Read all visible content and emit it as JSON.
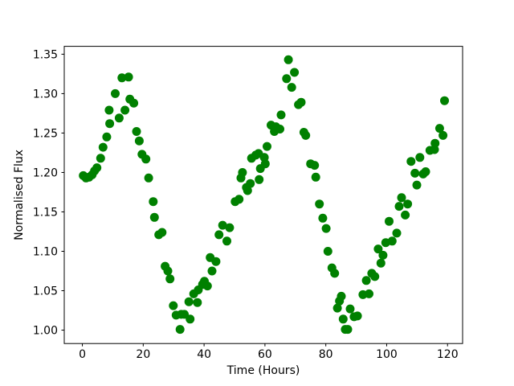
{
  "figure": {
    "background_color": "#ffffff"
  },
  "chart_data": {
    "type": "scatter",
    "title": "",
    "xlabel": "Time (Hours)",
    "ylabel": "Normalised Flux",
    "xlim": [
      -5.95,
      124.95
    ],
    "ylim": [
      0.983,
      1.36
    ],
    "xtick_values": [
      0,
      20,
      40,
      60,
      80,
      100,
      120
    ],
    "xtick_labels": [
      "0",
      "20",
      "40",
      "60",
      "80",
      "100",
      "120"
    ],
    "ytick_values": [
      1.0,
      1.05,
      1.1,
      1.15,
      1.2,
      1.25,
      1.3,
      1.35
    ],
    "ytick_labels": [
      "1.00",
      "1.05",
      "1.10",
      "1.15",
      "1.20",
      "1.25",
      "1.30",
      "1.35"
    ],
    "grid": false,
    "legend": "none",
    "marker": {
      "shape": "circle",
      "color": "#008000",
      "radius_px": 5.5
    },
    "points": [
      [
        0.3,
        1.196
      ],
      [
        1.2,
        1.193
      ],
      [
        2.2,
        1.194
      ],
      [
        3.2,
        1.197
      ],
      [
        4.0,
        1.202
      ],
      [
        4.8,
        1.206
      ],
      [
        6.0,
        1.218
      ],
      [
        6.8,
        1.232
      ],
      [
        8.0,
        1.245
      ],
      [
        8.8,
        1.279
      ],
      [
        9.0,
        1.262
      ],
      [
        10.8,
        1.3
      ],
      [
        12.1,
        1.269
      ],
      [
        13.0,
        1.32
      ],
      [
        14.0,
        1.279
      ],
      [
        15.2,
        1.321
      ],
      [
        15.6,
        1.293
      ],
      [
        16.9,
        1.288
      ],
      [
        17.8,
        1.252
      ],
      [
        18.7,
        1.24
      ],
      [
        19.6,
        1.223
      ],
      [
        20.9,
        1.217
      ],
      [
        21.8,
        1.193
      ],
      [
        23.3,
        1.163
      ],
      [
        23.7,
        1.143
      ],
      [
        25.1,
        1.121
      ],
      [
        26.2,
        1.124
      ],
      [
        27.2,
        1.081
      ],
      [
        28.1,
        1.075
      ],
      [
        28.8,
        1.065
      ],
      [
        29.9,
        1.031
      ],
      [
        30.8,
        1.019
      ],
      [
        32.1,
        1.001
      ],
      [
        32.5,
        1.02
      ],
      [
        33.5,
        1.02
      ],
      [
        35.0,
        1.036
      ],
      [
        35.4,
        1.014
      ],
      [
        36.6,
        1.046
      ],
      [
        37.8,
        1.035
      ],
      [
        38.1,
        1.051
      ],
      [
        39.5,
        1.058
      ],
      [
        40.1,
        1.062
      ],
      [
        41.1,
        1.056
      ],
      [
        42.0,
        1.092
      ],
      [
        42.6,
        1.075
      ],
      [
        43.9,
        1.087
      ],
      [
        44.9,
        1.121
      ],
      [
        46.1,
        1.133
      ],
      [
        47.5,
        1.113
      ],
      [
        48.4,
        1.13
      ],
      [
        50.2,
        1.163
      ],
      [
        51.5,
        1.166
      ],
      [
        52.1,
        1.193
      ],
      [
        52.6,
        1.2
      ],
      [
        53.9,
        1.181
      ],
      [
        54.3,
        1.177
      ],
      [
        55.2,
        1.186
      ],
      [
        55.6,
        1.218
      ],
      [
        57.0,
        1.222
      ],
      [
        57.9,
        1.224
      ],
      [
        58.1,
        1.191
      ],
      [
        58.5,
        1.205
      ],
      [
        59.8,
        1.219
      ],
      [
        60.1,
        1.211
      ],
      [
        60.7,
        1.233
      ],
      [
        62.0,
        1.26
      ],
      [
        63.1,
        1.252
      ],
      [
        63.6,
        1.258
      ],
      [
        64.9,
        1.255
      ],
      [
        65.3,
        1.273
      ],
      [
        67.1,
        1.319
      ],
      [
        67.7,
        1.343
      ],
      [
        68.8,
        1.308
      ],
      [
        69.7,
        1.327
      ],
      [
        71.0,
        1.286
      ],
      [
        71.9,
        1.289
      ],
      [
        72.8,
        1.251
      ],
      [
        73.4,
        1.247
      ],
      [
        75.0,
        1.211
      ],
      [
        76.3,
        1.209
      ],
      [
        76.7,
        1.194
      ],
      [
        77.9,
        1.16
      ],
      [
        79.0,
        1.142
      ],
      [
        80.1,
        1.129
      ],
      [
        80.7,
        1.1
      ],
      [
        82.0,
        1.079
      ],
      [
        82.9,
        1.072
      ],
      [
        83.8,
        1.028
      ],
      [
        84.5,
        1.037
      ],
      [
        85.1,
        1.043
      ],
      [
        85.7,
        1.014
      ],
      [
        86.4,
        1.001
      ],
      [
        87.2,
        1.001
      ],
      [
        88.0,
        1.027
      ],
      [
        89.3,
        1.017
      ],
      [
        90.4,
        1.018
      ],
      [
        92.2,
        1.045
      ],
      [
        93.3,
        1.063
      ],
      [
        94.2,
        1.046
      ],
      [
        95.1,
        1.072
      ],
      [
        96.1,
        1.068
      ],
      [
        97.2,
        1.103
      ],
      [
        98.1,
        1.085
      ],
      [
        98.8,
        1.095
      ],
      [
        99.7,
        1.111
      ],
      [
        100.8,
        1.138
      ],
      [
        101.8,
        1.113
      ],
      [
        103.3,
        1.123
      ],
      [
        104.1,
        1.157
      ],
      [
        104.9,
        1.168
      ],
      [
        106.1,
        1.146
      ],
      [
        106.9,
        1.16
      ],
      [
        108.0,
        1.214
      ],
      [
        109.3,
        1.199
      ],
      [
        109.9,
        1.184
      ],
      [
        110.9,
        1.219
      ],
      [
        112.0,
        1.198
      ],
      [
        112.8,
        1.201
      ],
      [
        114.2,
        1.228
      ],
      [
        115.9,
        1.237
      ],
      [
        115.7,
        1.229
      ],
      [
        117.4,
        1.256
      ],
      [
        118.5,
        1.247
      ],
      [
        119.0,
        1.291
      ]
    ]
  }
}
